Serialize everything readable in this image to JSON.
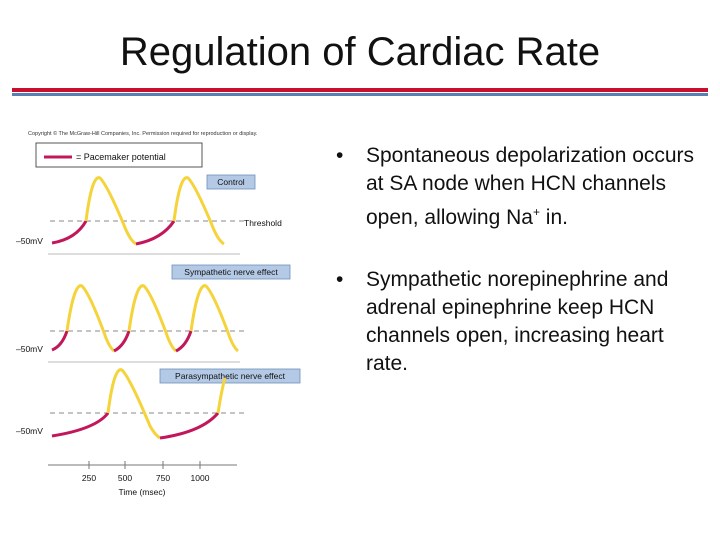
{
  "slide": {
    "title": "Regulation of Cardiac Rate"
  },
  "figure": {
    "copyright": "Copyright © The McGraw-Hill Companies, Inc. Permission required for reproduction or display.",
    "legend_label": "= Pacemaker potential",
    "panels": [
      {
        "label": "Control",
        "voltage": "–50mV",
        "threshold_label": "Threshold"
      },
      {
        "label": "Sympathetic nerve effect",
        "voltage": "–50mV"
      },
      {
        "label": "Parasympathetic nerve effect",
        "voltage": "–50mV"
      }
    ],
    "time_axis": {
      "ticks": [
        "250",
        "500",
        "750",
        "1000"
      ],
      "label": "Time (msec)"
    },
    "colors": {
      "pacemaker": "#c2185b",
      "action_potential": "#f5d33a",
      "label_box": "#b4c9e6",
      "threshold": "#888888"
    }
  },
  "bullets": [
    {
      "marker": "•",
      "text_before": "Spontaneous depolarization occurs at SA node when HCN channels open, allowing Na",
      "sup": "+",
      "text_after": " in."
    },
    {
      "marker": "•",
      "text_before": "Sympathetic norepinephrine and adrenal epinephrine keep HCN channels open, increasing heart rate.",
      "sup": "",
      "text_after": ""
    }
  ]
}
